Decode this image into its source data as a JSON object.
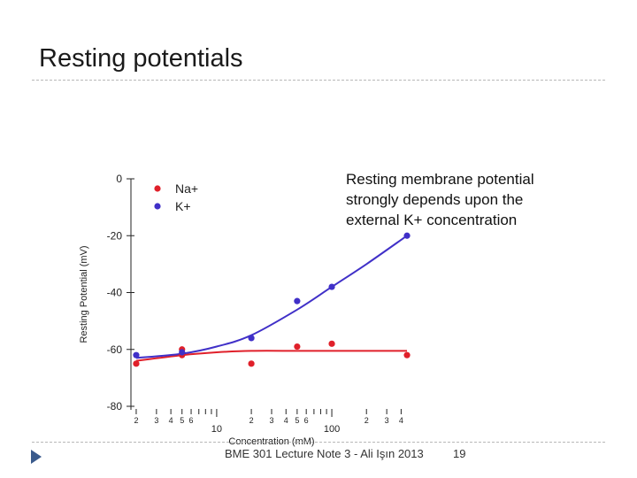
{
  "slide": {
    "title": "Resting potentials",
    "annotation_lines": [
      "Resting membrane potential",
      "strongly depends upon the",
      "external K+ concentration"
    ],
    "footer": "BME 301 Lecture Note 3 - Ali Işın 2013",
    "page_number": "19",
    "colors": {
      "footer_bullet": "#3a5a8c"
    }
  },
  "chart_data": {
    "type": "scatter",
    "xlabel": "Concentration (mM)",
    "ylabel": "Resting Potential (mV)",
    "x_scale": "log",
    "xlim": [
      1.8,
      500
    ],
    "ylim": [
      -80,
      0
    ],
    "y_ticks": [
      0,
      -20,
      -40,
      -60,
      -80
    ],
    "x_tick_labels_small": [
      {
        "value": 2,
        "label": "2"
      },
      {
        "value": 3,
        "label": "3"
      },
      {
        "value": 4,
        "label": "4"
      },
      {
        "value": 5,
        "label": "5"
      },
      {
        "value": 6,
        "label": "6"
      },
      {
        "value": 20,
        "label": "2"
      },
      {
        "value": 30,
        "label": "3"
      },
      {
        "value": 40,
        "label": "4"
      },
      {
        "value": 50,
        "label": "5"
      },
      {
        "value": 60,
        "label": "6"
      },
      {
        "value": 200,
        "label": "2"
      },
      {
        "value": 300,
        "label": "3"
      },
      {
        "value": 400,
        "label": "4"
      }
    ],
    "x_tick_labels_major": [
      {
        "value": 10,
        "label": "10"
      },
      {
        "value": 100,
        "label": "100"
      }
    ],
    "x_minor_ticks": [
      2,
      3,
      4,
      5,
      6,
      7,
      8,
      9,
      10,
      20,
      30,
      40,
      50,
      60,
      70,
      80,
      90,
      100,
      200,
      300,
      400
    ],
    "grid": false,
    "legend_position": "top-left",
    "series": [
      {
        "name": "Na+",
        "color": "#e0202a",
        "points": [
          {
            "x": 2,
            "y": -65
          },
          {
            "x": 5,
            "y": -60
          },
          {
            "x": 5,
            "y": -62
          },
          {
            "x": 20,
            "y": -65
          },
          {
            "x": 50,
            "y": -59
          },
          {
            "x": 100,
            "y": -58
          },
          {
            "x": 450,
            "y": -62
          }
        ],
        "fit": [
          {
            "x": 2,
            "y": -64
          },
          {
            "x": 5,
            "y": -62
          },
          {
            "x": 10,
            "y": -61
          },
          {
            "x": 20,
            "y": -60.5
          },
          {
            "x": 50,
            "y": -60.5
          },
          {
            "x": 100,
            "y": -60.5
          },
          {
            "x": 200,
            "y": -60.5
          },
          {
            "x": 450,
            "y": -60.5
          }
        ]
      },
      {
        "name": "K+",
        "color": "#4030c8",
        "points": [
          {
            "x": 2,
            "y": -62
          },
          {
            "x": 5,
            "y": -61
          },
          {
            "x": 20,
            "y": -56
          },
          {
            "x": 50,
            "y": -43
          },
          {
            "x": 100,
            "y": -38
          },
          {
            "x": 450,
            "y": -20
          }
        ],
        "fit": [
          {
            "x": 2,
            "y": -63
          },
          {
            "x": 5,
            "y": -61.5
          },
          {
            "x": 10,
            "y": -59
          },
          {
            "x": 20,
            "y": -55
          },
          {
            "x": 50,
            "y": -46
          },
          {
            "x": 100,
            "y": -38
          },
          {
            "x": 200,
            "y": -30
          },
          {
            "x": 450,
            "y": -20
          }
        ]
      }
    ]
  }
}
